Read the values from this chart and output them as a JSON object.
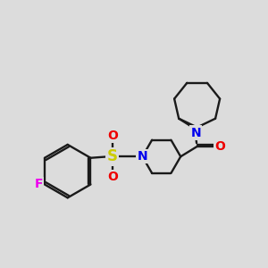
{
  "background_color": "#dcdcdc",
  "bond_color": "#1a1a1a",
  "N_color": "#0000ee",
  "O_color": "#ee0000",
  "S_color": "#cccc00",
  "F_color": "#ee00ee",
  "line_width": 1.7,
  "font_size": 10,
  "xlim": [
    0,
    10
  ],
  "ylim": [
    0,
    10
  ]
}
